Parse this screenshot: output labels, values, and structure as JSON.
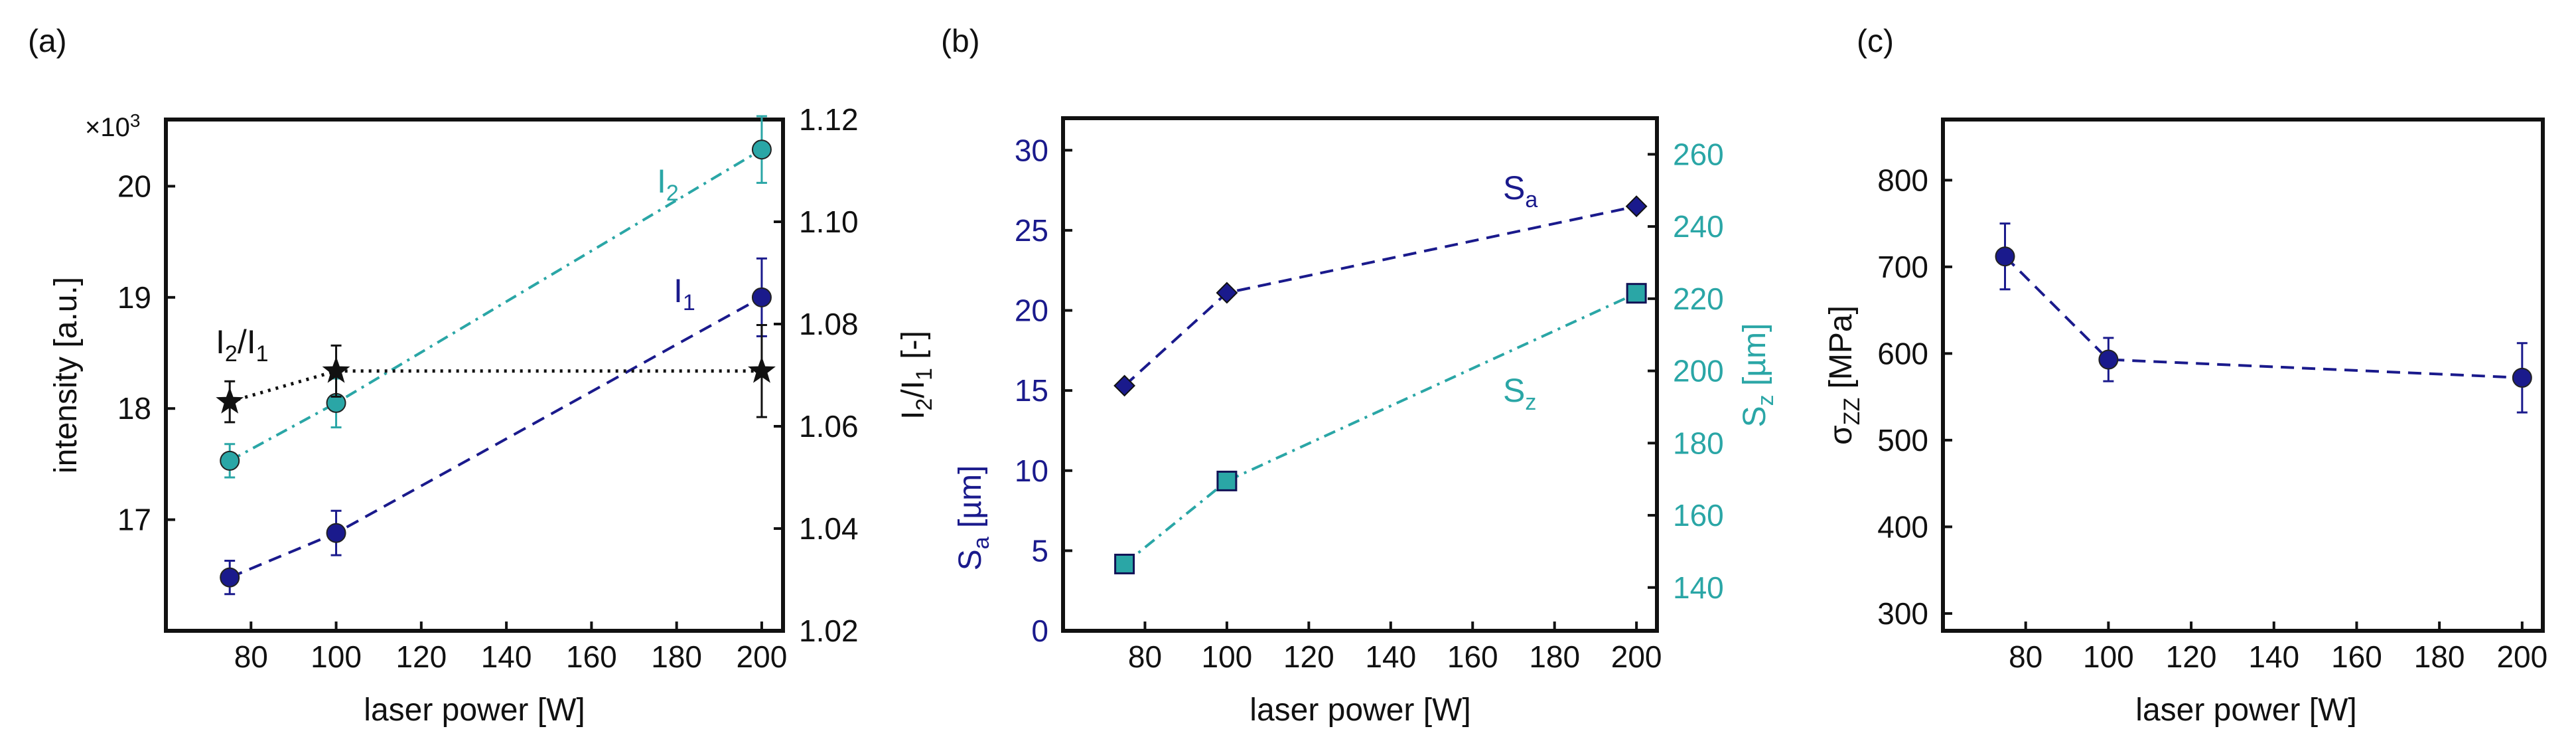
{
  "colors": {
    "navy": "#1a1a8c",
    "teal": "#2aa6a6",
    "black": "#111111"
  },
  "chart_data": [
    {
      "panel_label": "(a)",
      "type": "line",
      "xlabel": "laser power [W]",
      "x_ticks": [
        80,
        100,
        120,
        140,
        160,
        180,
        200
      ],
      "xlim": [
        60,
        205
      ],
      "left_axis": {
        "label_main": "intensity [a.u.]",
        "multiplier_base": "×10",
        "multiplier_exp": "3",
        "ylim": [
          16.0,
          20.6
        ],
        "ticks": [
          17,
          18,
          19,
          20
        ]
      },
      "right_axis": {
        "label_base": "I",
        "label_sub1": "2",
        "label_mid": "/I",
        "label_sub2": "1",
        "label_end": " [-]",
        "ylim": [
          1.02,
          1.12
        ],
        "ticks": [
          "1.02",
          "1.04",
          "1.06",
          "1.08",
          "1.10",
          "1.12"
        ]
      },
      "series": [
        {
          "name": "I1",
          "label_base": "I",
          "label_sub": "1",
          "axis": "left",
          "marker": "circle",
          "line": "dashed",
          "x": [
            75,
            100,
            200
          ],
          "y": [
            16.48,
            16.88,
            19.0
          ],
          "err": [
            0.15,
            0.2,
            0.35
          ]
        },
        {
          "name": "I2",
          "label_base": "I",
          "label_sub": "2",
          "axis": "left",
          "marker": "circle",
          "line": "dashdot",
          "x": [
            75,
            100,
            200
          ],
          "y": [
            17.53,
            18.05,
            20.33
          ],
          "err": [
            0.15,
            0.22,
            0.3
          ]
        },
        {
          "name": "I2/I1",
          "label_base": "I",
          "label_sub1": "2",
          "label_mid": "/I",
          "label_sub2": "1",
          "axis": "right",
          "marker": "star",
          "line": "dotted",
          "x": [
            75,
            100,
            200
          ],
          "y": [
            1.0648,
            1.0708,
            1.0708
          ],
          "err": [
            0.004,
            0.005,
            0.009
          ]
        }
      ]
    },
    {
      "panel_label": "(b)",
      "type": "line",
      "xlabel": "laser power [W]",
      "x_ticks": [
        80,
        100,
        120,
        140,
        160,
        180,
        200
      ],
      "xlim": [
        60,
        205
      ],
      "left_axis": {
        "label_base": "S",
        "label_sub": "a",
        "label_unit": " [µm]",
        "ylim": [
          0,
          32
        ],
        "ticks": [
          0,
          5,
          10,
          15,
          20,
          25,
          30
        ]
      },
      "right_axis": {
        "label_base": "S",
        "label_sub": "z",
        "label_unit": " [µm]",
        "ylim": [
          128,
          270
        ],
        "ticks": [
          140,
          160,
          180,
          200,
          220,
          240,
          260
        ]
      },
      "series": [
        {
          "name": "Sa",
          "label_base": "S",
          "label_sub": "a",
          "axis": "left",
          "marker": "diamond",
          "line": "dashed",
          "x": [
            75,
            100,
            200
          ],
          "y": [
            15.3,
            21.1,
            26.5
          ]
        },
        {
          "name": "Sz",
          "label_base": "S",
          "label_sub": "z",
          "axis": "right",
          "marker": "square",
          "line": "dashdot",
          "x": [
            75,
            100,
            200
          ],
          "y": [
            146.5,
            169.5,
            221.5
          ]
        }
      ]
    },
    {
      "panel_label": "(c)",
      "type": "line",
      "xlabel": "laser power [W]",
      "x_ticks": [
        80,
        100,
        120,
        140,
        160,
        180,
        200
      ],
      "xlim": [
        60,
        205
      ],
      "left_axis": {
        "label_base": "σ",
        "label_sub": "ZZ",
        "label_unit": " [MPa]",
        "ylim": [
          280,
          870
        ],
        "ticks": [
          300,
          400,
          500,
          600,
          700,
          800
        ]
      },
      "series": [
        {
          "name": "sigma_zz",
          "axis": "left",
          "marker": "circle",
          "line": "dashed",
          "x": [
            75,
            100,
            200
          ],
          "y": [
            712,
            593,
            572
          ],
          "err": [
            38,
            25,
            40
          ]
        }
      ]
    }
  ]
}
